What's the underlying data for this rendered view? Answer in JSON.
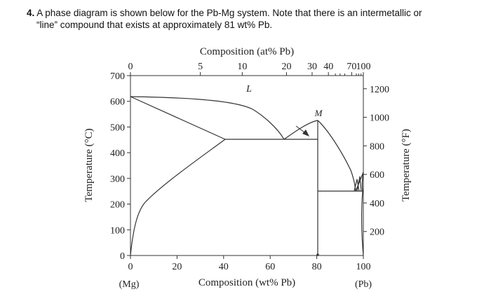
{
  "question": {
    "number": "4.",
    "line1": "A phase diagram is shown below for the Pb-Mg system.  Note that there is an intermetallic or",
    "line2": "“line” compound that exists at approximately 81 wt% Pb."
  },
  "diagram": {
    "top_axis_title": "Composition (at% Pb)",
    "top_ticks": [
      {
        "value": 0,
        "label": "0"
      },
      {
        "value": 5,
        "label": "5"
      },
      {
        "value": 10,
        "label": "10"
      },
      {
        "value": 20,
        "label": "20"
      },
      {
        "value": 30,
        "label": "30"
      },
      {
        "value": 40,
        "label": "40"
      },
      {
        "value": 70,
        "label": "70"
      },
      {
        "value": 100,
        "label": "100"
      }
    ],
    "bottom_axis_title": "Composition (wt% Pb)",
    "bottom_ticks": [
      {
        "value": 0,
        "label": "0"
      },
      {
        "value": 20,
        "label": "20"
      },
      {
        "value": 40,
        "label": "40"
      },
      {
        "value": 60,
        "label": "60"
      },
      {
        "value": 80,
        "label": "80"
      },
      {
        "value": 100,
        "label": "100"
      }
    ],
    "left_end_label": "(Mg)",
    "right_end_label": "(Pb)",
    "left_axis_title": "Temperature (°C)",
    "left_ticks": [
      {
        "value": 0,
        "label": "0"
      },
      {
        "value": 100,
        "label": "100"
      },
      {
        "value": 200,
        "label": "200"
      },
      {
        "value": 300,
        "label": "300"
      },
      {
        "value": 400,
        "label": "400"
      },
      {
        "value": 500,
        "label": "500"
      },
      {
        "value": 600,
        "label": "600"
      },
      {
        "value": 700,
        "label": "700"
      }
    ],
    "right_axis_title": "Temperature (°F)",
    "right_ticks": [
      {
        "value": 200,
        "label": "200"
      },
      {
        "value": 400,
        "label": "400"
      },
      {
        "value": 600,
        "label": "600"
      },
      {
        "value": 800,
        "label": "800"
      },
      {
        "value": 1000,
        "label": "1000"
      },
      {
        "value": 1200,
        "label": "1200"
      }
    ],
    "region_labels": {
      "liquid": "L",
      "compound": "M"
    },
    "x_range_wt_pct": [
      0,
      100
    ],
    "y_range_c": [
      0,
      700
    ],
    "key_points": {
      "mg_melting_c": 650,
      "mg_rich_eutectic": {
        "wt_pct": 67,
        "temp_c": 466
      },
      "mg_solvus_max": {
        "wt_pct": 41,
        "temp_c": 466
      },
      "compound": {
        "wt_pct": 81,
        "melting_c": 550
      },
      "pb_rich_eutectic": {
        "wt_pct": 97,
        "temp_c": 250
      },
      "pb_melting_c": 327
    }
  }
}
